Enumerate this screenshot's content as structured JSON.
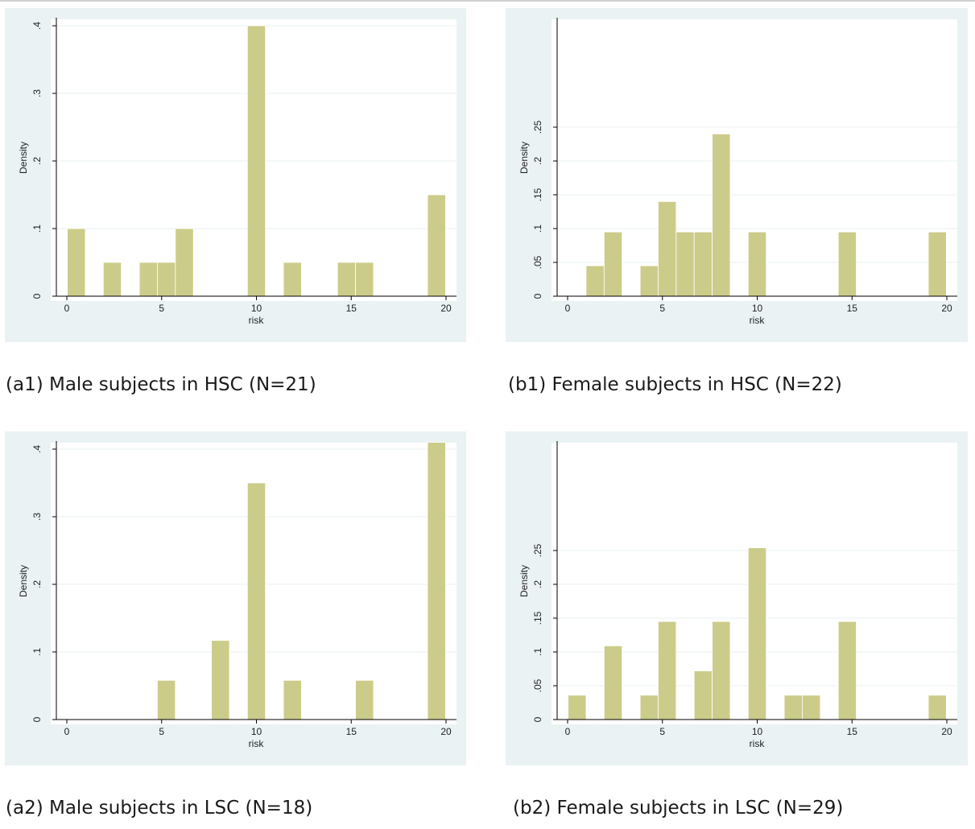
{
  "chart_data": [
    {
      "type": "bar",
      "caption": "(a1) Male subjects in HSC (N=21)",
      "xlabel": "risk",
      "ylabel": "Density",
      "xlim": [
        0,
        20
      ],
      "ylim": [
        0,
        0.4
      ],
      "xticks": [
        "0",
        "5",
        "10",
        "15",
        "20"
      ],
      "yticks": [
        "0",
        ".1",
        ".2",
        ".3",
        ".4"
      ],
      "bin_width": 0.95,
      "bins": [
        {
          "x": 0.5,
          "y": 0.1
        },
        {
          "x": 2.4,
          "y": 0.05
        },
        {
          "x": 4.3,
          "y": 0.05
        },
        {
          "x": 5.25,
          "y": 0.05
        },
        {
          "x": 6.2,
          "y": 0.1
        },
        {
          "x": 10.0,
          "y": 0.4
        },
        {
          "x": 11.9,
          "y": 0.05
        },
        {
          "x": 14.75,
          "y": 0.05
        },
        {
          "x": 15.7,
          "y": 0.05
        },
        {
          "x": 19.5,
          "y": 0.15
        }
      ]
    },
    {
      "type": "bar",
      "caption": "(b1) Female subjects in HSC (N=22)",
      "xlabel": "risk",
      "ylabel": "Density",
      "xlim": [
        0,
        20
      ],
      "ylim": [
        0,
        0.25
      ],
      "xticks": [
        "0",
        "5",
        "10",
        "15",
        "20"
      ],
      "yticks": [
        "0",
        ".05",
        ".1",
        ".15",
        ".2",
        ".25"
      ],
      "bin_width": 0.95,
      "bins": [
        {
          "x": 1.45,
          "y": 0.045
        },
        {
          "x": 2.4,
          "y": 0.095
        },
        {
          "x": 4.3,
          "y": 0.045
        },
        {
          "x": 5.25,
          "y": 0.14
        },
        {
          "x": 6.2,
          "y": 0.095
        },
        {
          "x": 7.15,
          "y": 0.095
        },
        {
          "x": 8.1,
          "y": 0.24
        },
        {
          "x": 10.0,
          "y": 0.095
        },
        {
          "x": 14.75,
          "y": 0.095
        },
        {
          "x": 19.5,
          "y": 0.095
        }
      ]
    },
    {
      "type": "bar",
      "caption": "(a2) Male subjects in LSC (N=18)",
      "xlabel": "risk",
      "ylabel": "Density",
      "xlim": [
        0,
        20
      ],
      "ylim": [
        0,
        0.4
      ],
      "xticks": [
        "0",
        "5",
        "10",
        "15",
        "20"
      ],
      "yticks": [
        "0",
        ".1",
        ".2",
        ".3",
        ".4"
      ],
      "bin_width": 0.95,
      "bins": [
        {
          "x": 5.25,
          "y": 0.058
        },
        {
          "x": 8.1,
          "y": 0.117
        },
        {
          "x": 10.0,
          "y": 0.35
        },
        {
          "x": 11.9,
          "y": 0.058
        },
        {
          "x": 15.7,
          "y": 0.058
        },
        {
          "x": 19.5,
          "y": 0.41
        }
      ]
    },
    {
      "type": "bar",
      "caption": "(b2) Female subjects in LSC (N=29)",
      "xlabel": "risk",
      "ylabel": "Density",
      "xlim": [
        0,
        20
      ],
      "ylim": [
        0,
        0.25
      ],
      "xticks": [
        "0",
        "5",
        "10",
        "15",
        "20"
      ],
      "yticks": [
        "0",
        ".05",
        ".1",
        ".15",
        ".2",
        ".25"
      ],
      "bin_width": 0.95,
      "bins": [
        {
          "x": 0.5,
          "y": 0.036
        },
        {
          "x": 2.4,
          "y": 0.109
        },
        {
          "x": 4.3,
          "y": 0.036
        },
        {
          "x": 5.25,
          "y": 0.145
        },
        {
          "x": 7.15,
          "y": 0.072
        },
        {
          "x": 8.1,
          "y": 0.145
        },
        {
          "x": 10.0,
          "y": 0.254
        },
        {
          "x": 11.9,
          "y": 0.036
        },
        {
          "x": 12.85,
          "y": 0.036
        },
        {
          "x": 14.75,
          "y": 0.145
        },
        {
          "x": 19.5,
          "y": 0.036
        }
      ]
    }
  ],
  "colors": {
    "bar_fill": "#cccc8a",
    "bar_edge": "#b9b979",
    "panel_bg": "#eaf2f3",
    "plot_bg": "#ffffff",
    "grid": "#eaf2f3",
    "axis": "#000000"
  }
}
